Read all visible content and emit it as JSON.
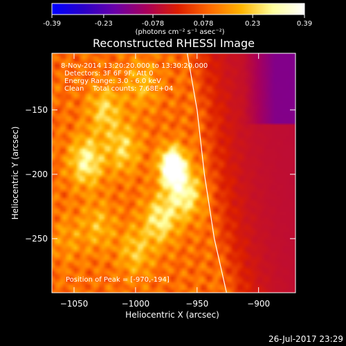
{
  "colorbar": {
    "ticks": [
      "-0.39",
      "-0.23",
      "-0.078",
      "0.078",
      "0.23",
      "0.39"
    ],
    "tick_values": [
      -0.39,
      -0.23,
      -0.078,
      0.078,
      0.23,
      0.39
    ],
    "range": [
      -0.39,
      0.39
    ],
    "units": "(photons cm⁻² s⁻¹ asec⁻²)",
    "colormap": [
      "#0000ff",
      "#2a00c8",
      "#6a00a8",
      "#a8005a",
      "#dc1e00",
      "#ff6a00",
      "#ffb400",
      "#ffff9e",
      "#ffffff"
    ]
  },
  "chart_data": {
    "type": "heatmap",
    "title": "Reconstructed RHESSI Image",
    "xlabel": "Heliocentric X (arcsec)",
    "ylabel": "Heliocentric Y (arcsec)",
    "xlim": [
      -1068,
      -870
    ],
    "ylim": [
      -292,
      -106
    ],
    "x_ticks": [
      -1050,
      -1000,
      -950,
      -900
    ],
    "x_tick_labels": [
      "−1050",
      "−1000",
      "−950",
      "−900"
    ],
    "y_ticks": [
      -150,
      -200,
      -250
    ],
    "y_tick_labels": [
      "−150",
      "−200",
      "−250"
    ],
    "info_lines": [
      "8-Nov-2014 13:20:20.000 to 13:30:20.000",
      "Detectors: 3F 6F 9F, Att 0",
      "Energy Range: 3.0 - 6.0 keV",
      "Clean    Total counts: 7.68E+04"
    ],
    "peak_label": "Position of Peak = [-970,-194]",
    "peak": [
      -970,
      -194
    ],
    "limb": [
      [
        -958,
        -106
      ],
      [
        -950,
        -150
      ],
      [
        -944,
        -200
      ],
      [
        -936,
        -250
      ],
      [
        -926,
        -292
      ]
    ],
    "sources": [
      {
        "x": -970,
        "y": -194,
        "value": 0.39
      },
      {
        "x": -960,
        "y": -215,
        "value": 0.2
      },
      {
        "x": -980,
        "y": -235,
        "value": 0.18
      },
      {
        "x": -1040,
        "y": -190,
        "value": 0.2
      },
      {
        "x": -1010,
        "y": -180,
        "value": 0.14
      },
      {
        "x": -1025,
        "y": -150,
        "value": 0.14
      },
      {
        "x": -995,
        "y": -130,
        "value": 0.1
      },
      {
        "x": -1000,
        "y": -260,
        "value": 0.12
      },
      {
        "x": -1030,
        "y": -240,
        "value": 0.1
      },
      {
        "x": -1055,
        "y": -250,
        "value": 0.06
      }
    ],
    "grid": false
  },
  "footer": {
    "timestamp": "26-Jul-2017 23:29"
  }
}
